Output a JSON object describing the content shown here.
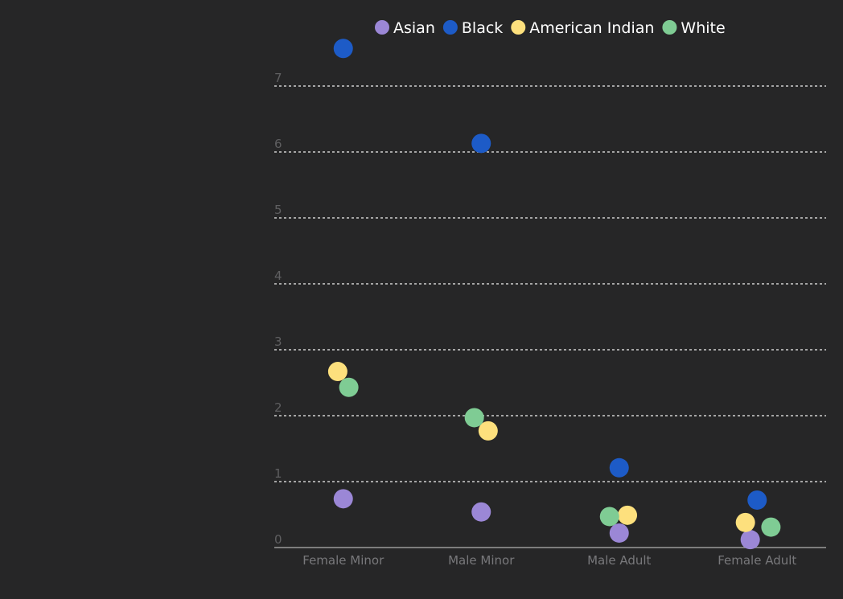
{
  "chart_data": {
    "type": "scatter",
    "title": "",
    "xlabel": "",
    "ylabel": "",
    "categories": [
      "Female Minor",
      "Male Minor",
      "Male Adult",
      "Female Adult"
    ],
    "ylim": [
      0,
      7.4
    ],
    "yticks": [
      0,
      1,
      2,
      3,
      4,
      5,
      6,
      7
    ],
    "grid": true,
    "legend_position": "top-right",
    "series": [
      {
        "name": "Asian",
        "color": "#9b87d6",
        "values": [
          0.74,
          0.54,
          0.22,
          0.12
        ],
        "jitter": [
          0,
          0,
          0,
          -0.1
        ]
      },
      {
        "name": "Black",
        "color": "#1d5bc7",
        "values": [
          7.57,
          6.13,
          1.21,
          0.72
        ],
        "jitter": [
          0,
          0,
          0,
          0
        ]
      },
      {
        "name": "American Indian",
        "color": "#fde07d",
        "values": [
          2.67,
          1.77,
          0.49,
          0.38
        ],
        "jitter": [
          -0.08,
          0.1,
          0.12,
          -0.17
        ]
      },
      {
        "name": "White",
        "color": "#7fcc94",
        "values": [
          2.43,
          1.97,
          0.47,
          0.31
        ],
        "jitter": [
          0.08,
          -0.1,
          -0.14,
          0.2
        ]
      }
    ]
  }
}
